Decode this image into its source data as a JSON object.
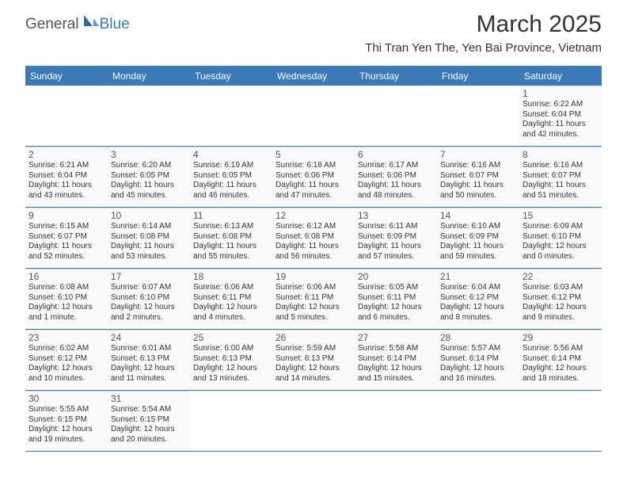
{
  "logo": {
    "general": "General",
    "blue": "Blue"
  },
  "title": "March 2025",
  "location": "Thi Tran Yen The, Yen Bai Province, Vietnam",
  "colors": {
    "brand_blue": "#3a7ab8",
    "text": "#333333",
    "muted": "#555555",
    "cell_bg": "#fafafa",
    "divider": "#dddddd",
    "white": "#ffffff"
  },
  "day_headers": [
    "Sunday",
    "Monday",
    "Tuesday",
    "Wednesday",
    "Thursday",
    "Friday",
    "Saturday"
  ],
  "weeks": [
    [
      null,
      null,
      null,
      null,
      null,
      null,
      {
        "n": "1",
        "sr": "Sunrise: 6:22 AM",
        "ss": "Sunset: 6:04 PM",
        "dl": "Daylight: 11 hours and 42 minutes."
      }
    ],
    [
      {
        "n": "2",
        "sr": "Sunrise: 6:21 AM",
        "ss": "Sunset: 6:04 PM",
        "dl": "Daylight: 11 hours and 43 minutes."
      },
      {
        "n": "3",
        "sr": "Sunrise: 6:20 AM",
        "ss": "Sunset: 6:05 PM",
        "dl": "Daylight: 11 hours and 45 minutes."
      },
      {
        "n": "4",
        "sr": "Sunrise: 6:19 AM",
        "ss": "Sunset: 6:05 PM",
        "dl": "Daylight: 11 hours and 46 minutes."
      },
      {
        "n": "5",
        "sr": "Sunrise: 6:18 AM",
        "ss": "Sunset: 6:06 PM",
        "dl": "Daylight: 11 hours and 47 minutes."
      },
      {
        "n": "6",
        "sr": "Sunrise: 6:17 AM",
        "ss": "Sunset: 6:06 PM",
        "dl": "Daylight: 11 hours and 48 minutes."
      },
      {
        "n": "7",
        "sr": "Sunrise: 6:16 AM",
        "ss": "Sunset: 6:07 PM",
        "dl": "Daylight: 11 hours and 50 minutes."
      },
      {
        "n": "8",
        "sr": "Sunrise: 6:16 AM",
        "ss": "Sunset: 6:07 PM",
        "dl": "Daylight: 11 hours and 51 minutes."
      }
    ],
    [
      {
        "n": "9",
        "sr": "Sunrise: 6:15 AM",
        "ss": "Sunset: 6:07 PM",
        "dl": "Daylight: 11 hours and 52 minutes."
      },
      {
        "n": "10",
        "sr": "Sunrise: 6:14 AM",
        "ss": "Sunset: 6:08 PM",
        "dl": "Daylight: 11 hours and 53 minutes."
      },
      {
        "n": "11",
        "sr": "Sunrise: 6:13 AM",
        "ss": "Sunset: 6:08 PM",
        "dl": "Daylight: 11 hours and 55 minutes."
      },
      {
        "n": "12",
        "sr": "Sunrise: 6:12 AM",
        "ss": "Sunset: 6:08 PM",
        "dl": "Daylight: 11 hours and 56 minutes."
      },
      {
        "n": "13",
        "sr": "Sunrise: 6:11 AM",
        "ss": "Sunset: 6:09 PM",
        "dl": "Daylight: 11 hours and 57 minutes."
      },
      {
        "n": "14",
        "sr": "Sunrise: 6:10 AM",
        "ss": "Sunset: 6:09 PM",
        "dl": "Daylight: 11 hours and 59 minutes."
      },
      {
        "n": "15",
        "sr": "Sunrise: 6:09 AM",
        "ss": "Sunset: 6:10 PM",
        "dl": "Daylight: 12 hours and 0 minutes."
      }
    ],
    [
      {
        "n": "16",
        "sr": "Sunrise: 6:08 AM",
        "ss": "Sunset: 6:10 PM",
        "dl": "Daylight: 12 hours and 1 minute."
      },
      {
        "n": "17",
        "sr": "Sunrise: 6:07 AM",
        "ss": "Sunset: 6:10 PM",
        "dl": "Daylight: 12 hours and 2 minutes."
      },
      {
        "n": "18",
        "sr": "Sunrise: 6:06 AM",
        "ss": "Sunset: 6:11 PM",
        "dl": "Daylight: 12 hours and 4 minutes."
      },
      {
        "n": "19",
        "sr": "Sunrise: 6:06 AM",
        "ss": "Sunset: 6:11 PM",
        "dl": "Daylight: 12 hours and 5 minutes."
      },
      {
        "n": "20",
        "sr": "Sunrise: 6:05 AM",
        "ss": "Sunset: 6:11 PM",
        "dl": "Daylight: 12 hours and 6 minutes."
      },
      {
        "n": "21",
        "sr": "Sunrise: 6:04 AM",
        "ss": "Sunset: 6:12 PM",
        "dl": "Daylight: 12 hours and 8 minutes."
      },
      {
        "n": "22",
        "sr": "Sunrise: 6:03 AM",
        "ss": "Sunset: 6:12 PM",
        "dl": "Daylight: 12 hours and 9 minutes."
      }
    ],
    [
      {
        "n": "23",
        "sr": "Sunrise: 6:02 AM",
        "ss": "Sunset: 6:12 PM",
        "dl": "Daylight: 12 hours and 10 minutes."
      },
      {
        "n": "24",
        "sr": "Sunrise: 6:01 AM",
        "ss": "Sunset: 6:13 PM",
        "dl": "Daylight: 12 hours and 11 minutes."
      },
      {
        "n": "25",
        "sr": "Sunrise: 6:00 AM",
        "ss": "Sunset: 6:13 PM",
        "dl": "Daylight: 12 hours and 13 minutes."
      },
      {
        "n": "26",
        "sr": "Sunrise: 5:59 AM",
        "ss": "Sunset: 6:13 PM",
        "dl": "Daylight: 12 hours and 14 minutes."
      },
      {
        "n": "27",
        "sr": "Sunrise: 5:58 AM",
        "ss": "Sunset: 6:14 PM",
        "dl": "Daylight: 12 hours and 15 minutes."
      },
      {
        "n": "28",
        "sr": "Sunrise: 5:57 AM",
        "ss": "Sunset: 6:14 PM",
        "dl": "Daylight: 12 hours and 16 minutes."
      },
      {
        "n": "29",
        "sr": "Sunrise: 5:56 AM",
        "ss": "Sunset: 6:14 PM",
        "dl": "Daylight: 12 hours and 18 minutes."
      }
    ],
    [
      {
        "n": "30",
        "sr": "Sunrise: 5:55 AM",
        "ss": "Sunset: 6:15 PM",
        "dl": "Daylight: 12 hours and 19 minutes."
      },
      {
        "n": "31",
        "sr": "Sunrise: 5:54 AM",
        "ss": "Sunset: 6:15 PM",
        "dl": "Daylight: 12 hours and 20 minutes."
      },
      null,
      null,
      null,
      null,
      null
    ]
  ]
}
